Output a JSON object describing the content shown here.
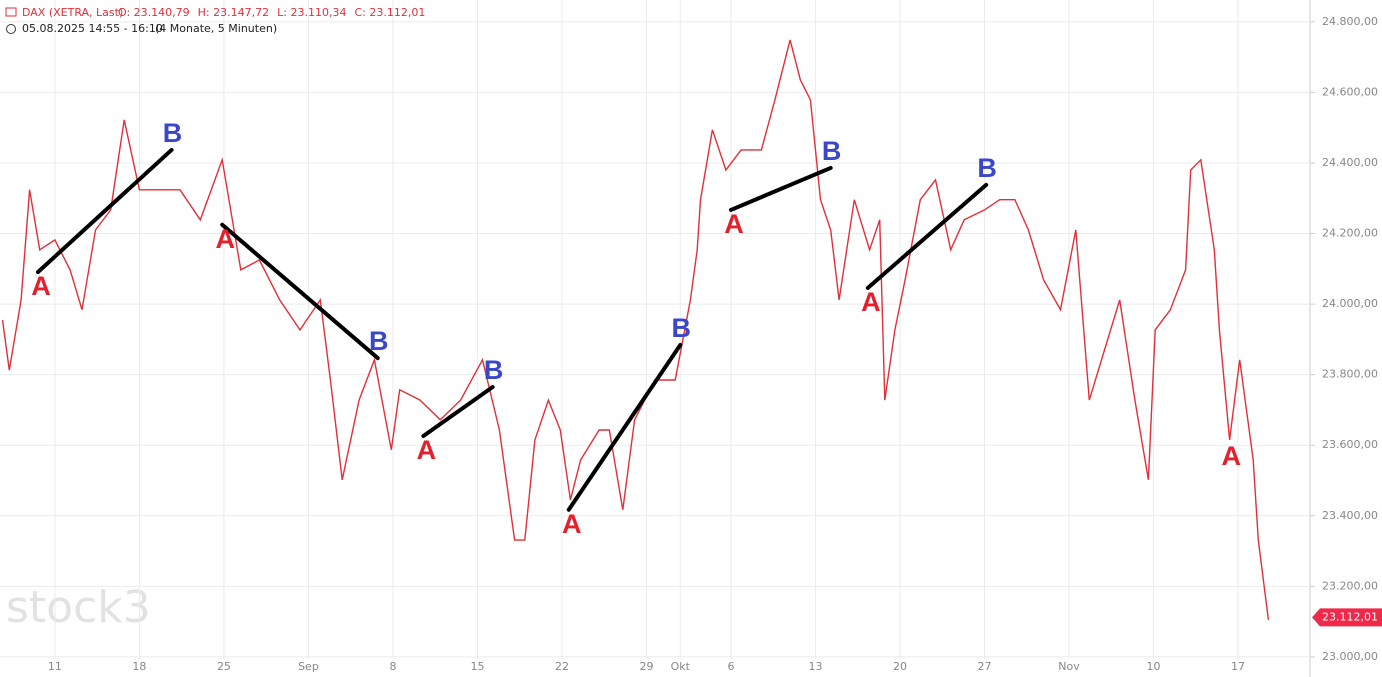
{
  "chart_data": {
    "type": "line",
    "title": "DAX (XETRA, Last)",
    "ohlc": [
      "O: 23.140,79",
      "H: 23.147,72",
      "L: 23.110,34",
      "C: 23.112,01"
    ],
    "subtitle": "05.08.2025 14:55 - 16:10",
    "period": "(4 Monate, 5 Minuten)",
    "watermark": "stock3",
    "x": [
      -3.1,
      -2.7,
      -2.0,
      -1.5,
      -0.9,
      0,
      0.9,
      1.6,
      2.4,
      3.3,
      4.1,
      5.0,
      6.2,
      7.4,
      8.6,
      9.9,
      11.0,
      12.1,
      13.3,
      14.5,
      15.7,
      16.3,
      17.0,
      18.0,
      18.9,
      19.9,
      20.4,
      21.6,
      22.8,
      24.0,
      25.3,
      26.3,
      27.2,
      27.8,
      28.4,
      29.2,
      29.9,
      30.5,
      31.1,
      32.2,
      32.8,
      33.6,
      34.3,
      35.5,
      36.7,
      37.6,
      38.0,
      38.2,
      38.9,
      39.7,
      40.6,
      41.8,
      42.6,
      43.5,
      44.1,
      44.7,
      45.3,
      45.9,
      46.4,
      47.3,
      48.2,
      48.8,
      49.1,
      49.7,
      50.3,
      51.2,
      52.1,
      53.0,
      53.8,
      55.0,
      55.9,
      56.8,
      57.6,
      58.5,
      59.5,
      60.4,
      61.2,
      62.1,
      63.0,
      63.9,
      64.7,
      65.1,
      66.0,
      66.9,
      67.2,
      67.8,
      68.6,
      68.9,
      69.5,
      70.1,
      70.9,
      71.2,
      71.8
    ],
    "series": [
      {
        "name": "DAX",
        "color": "#e0303a",
        "values": [
          23955,
          23813,
          24012,
          24324,
          24154,
          24182,
          24097,
          23984,
          24210,
          24267,
          24522,
          24324,
          24324,
          24324,
          24239,
          24409,
          24097,
          24125,
          24012,
          23927,
          24012,
          23785,
          23502,
          23728,
          23842,
          23587,
          23757,
          23728,
          23672,
          23728,
          23842,
          23643,
          23331,
          23331,
          23615,
          23728,
          23643,
          23445,
          23558,
          23643,
          23643,
          23417,
          23672,
          23785,
          23785,
          24012,
          24154,
          24296,
          24494,
          24380,
          24437,
          24437,
          24579,
          24749,
          24636,
          24579,
          24296,
          24210,
          24012,
          24296,
          24154,
          24239,
          23728,
          23927,
          24069,
          24296,
          24352,
          24154,
          24239,
          24267,
          24296,
          24296,
          24210,
          24069,
          23984,
          24210,
          23728,
          23870,
          24012,
          23728,
          23502,
          23927,
          23984,
          24097,
          24380,
          24409,
          24154,
          23927,
          23615,
          23842,
          23558,
          23331,
          23105
        ]
      }
    ],
    "xlim": [
      -3.25,
      74.26
    ],
    "ylim": [
      22943,
      24862
    ],
    "xticks": [
      {
        "value": 0,
        "label": "11"
      },
      {
        "value": 5,
        "label": "18"
      },
      {
        "value": 10,
        "label": "25"
      },
      {
        "value": 15,
        "label": "Sep"
      },
      {
        "value": 20,
        "label": "8"
      },
      {
        "value": 25,
        "label": "15"
      },
      {
        "value": 30,
        "label": "22"
      },
      {
        "value": 35,
        "label": "29"
      },
      {
        "value": 37,
        "label": "Okt"
      },
      {
        "value": 40,
        "label": "6"
      },
      {
        "value": 45,
        "label": "13"
      },
      {
        "value": 50,
        "label": "20"
      },
      {
        "value": 55,
        "label": "27"
      },
      {
        "value": 60,
        "label": "Nov"
      },
      {
        "value": 65,
        "label": "10"
      },
      {
        "value": 70,
        "label": "17"
      }
    ],
    "yticks": [
      {
        "value": 23000,
        "label": "23.000,00"
      },
      {
        "value": 23200,
        "label": "23.200,00"
      },
      {
        "value": 23400,
        "label": "23.400,00"
      },
      {
        "value": 23600,
        "label": "23.600,00"
      },
      {
        "value": 23800,
        "label": "23.800,00"
      },
      {
        "value": 24000,
        "label": "24.000,00"
      },
      {
        "value": 24200,
        "label": "24.200,00"
      },
      {
        "value": 24400,
        "label": "24.400,00"
      },
      {
        "value": 24600,
        "label": "24.600,00"
      },
      {
        "value": 24800,
        "label": "24.800,00"
      }
    ],
    "grid": true,
    "last_price": {
      "value": 23112.01,
      "label": "23.112,01"
    },
    "annotations": [
      {
        "start": {
          "x": -1.0,
          "y": 24091
        },
        "end": {
          "x": 6.9,
          "y": 24437
        },
        "start_label": "A",
        "end_label": "B"
      },
      {
        "start": {
          "x": 9.9,
          "y": 24225
        },
        "end": {
          "x": 19.1,
          "y": 23847
        },
        "start_label": "A",
        "end_label": "B"
      },
      {
        "start": {
          "x": 21.8,
          "y": 23626
        },
        "end": {
          "x": 25.9,
          "y": 23765
        },
        "start_label": "A",
        "end_label": "B"
      },
      {
        "start": {
          "x": 30.4,
          "y": 23417
        },
        "end": {
          "x": 37.0,
          "y": 23884
        },
        "start_label": "A",
        "end_label": "B"
      },
      {
        "start": {
          "x": 40.0,
          "y": 24267
        },
        "end": {
          "x": 45.9,
          "y": 24386
        },
        "start_label": "A",
        "end_label": "B"
      },
      {
        "start": {
          "x": 48.1,
          "y": 24046
        },
        "end": {
          "x": 55.1,
          "y": 24338
        },
        "start_label": "A",
        "end_label": "B"
      }
    ],
    "points": [
      {
        "x": 69.6,
        "y": 23564,
        "label": "A"
      }
    ],
    "label_colors": {
      "A": "#e3202c",
      "B": "#3b47c9"
    }
  }
}
